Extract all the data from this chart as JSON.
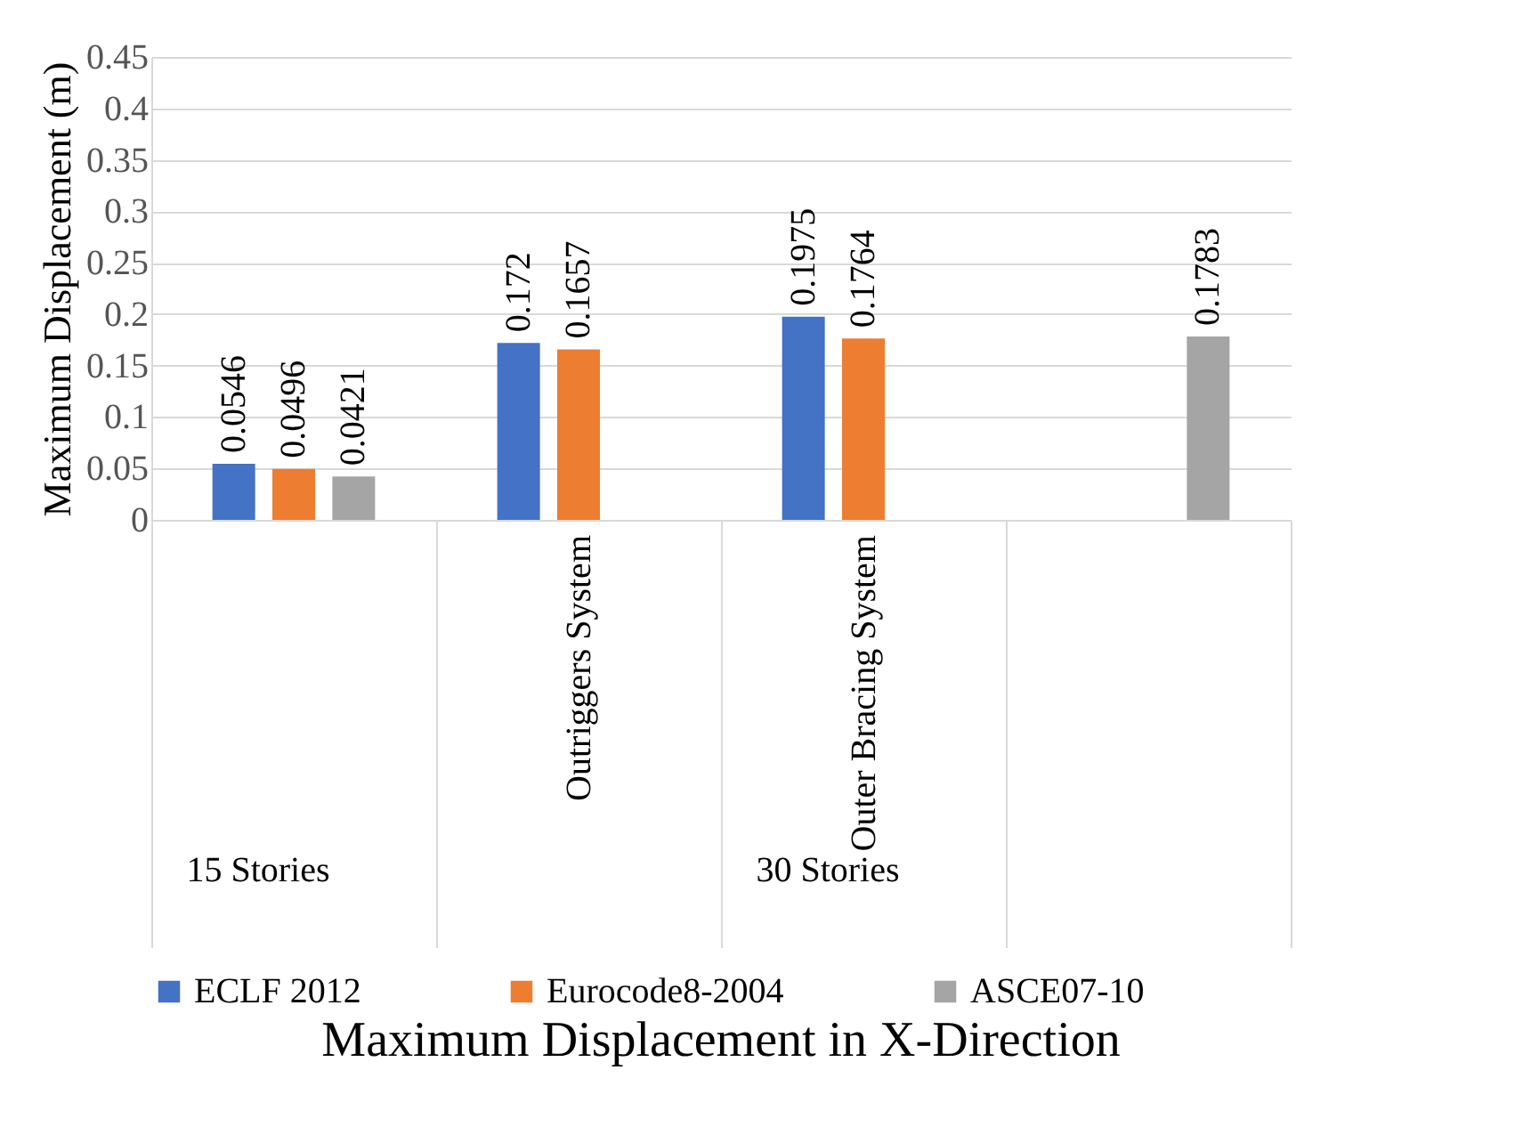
{
  "chart_data": {
    "type": "bar",
    "title": "Maximum Displacement in X-Direction",
    "ylabel": "Maximum Displacement (m)",
    "categories": [
      null,
      "Outriggers System",
      "Outer Bracing System",
      null
    ],
    "series": [
      {
        "name": "ECLF 2012",
        "color": "#4472c4",
        "values": [
          0.0546,
          0.172,
          0.1975,
          null
        ]
      },
      {
        "name": "Eurocode8-2004",
        "color": "#ed7d31",
        "values": [
          0.0496,
          0.1657,
          0.1764,
          null
        ]
      },
      {
        "name": "ASCE07-10",
        "color": "#a5a5a5",
        "values": [
          0.0421,
          null,
          null,
          0.1783
        ]
      }
    ],
    "ylim": [
      0,
      0.45
    ],
    "yticks": [
      0,
      0.05,
      0.1,
      0.15,
      0.2,
      0.25,
      0.3,
      0.35,
      0.4,
      0.45
    ],
    "grid": "y",
    "legend": "bottom",
    "data_labels": true,
    "annotations": [
      "15 Stories",
      "30 Stories"
    ]
  }
}
